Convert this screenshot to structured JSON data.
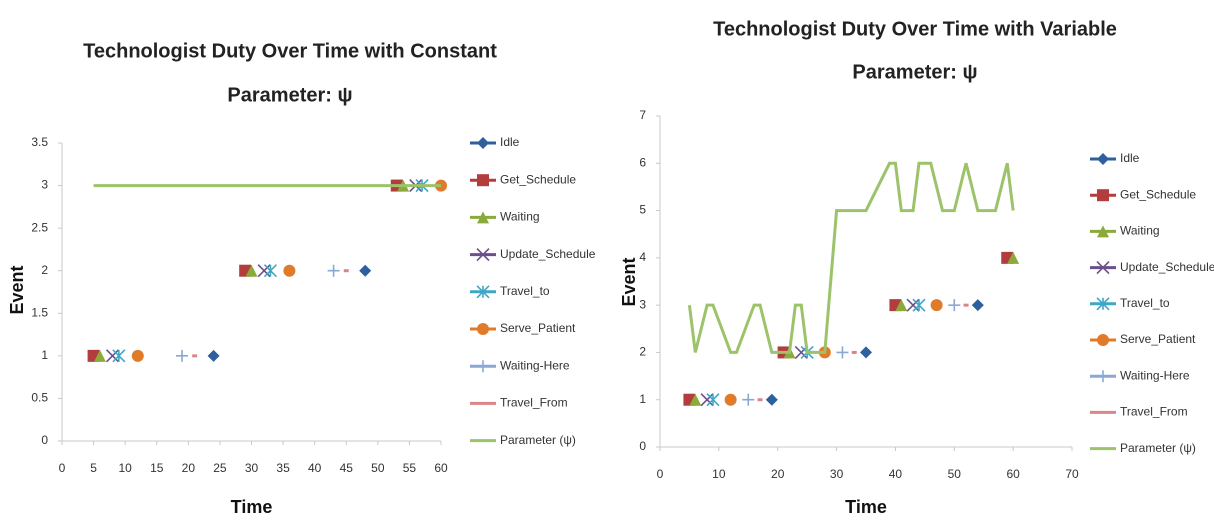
{
  "chart_data": [
    {
      "type": "scatter",
      "title": [
        "Technologist Duty Over Time with Constant",
        "Parameter: ψ"
      ],
      "x_label": "Time",
      "y_label": "Event",
      "xlim": [
        0,
        60
      ],
      "xticks": [
        0,
        5,
        10,
        15,
        20,
        25,
        30,
        35,
        40,
        45,
        50,
        55,
        60
      ],
      "ylim": [
        0,
        3.5
      ],
      "yticks": [
        0,
        0.5,
        1,
        1.5,
        2,
        2.5,
        3,
        3.5
      ],
      "series": [
        {
          "name": "Idle",
          "color": "#2e5f9e",
          "marker": "diamond",
          "x": [
            24,
            48
          ],
          "values": [
            1,
            2
          ]
        },
        {
          "name": "Get_Schedule",
          "color": "#b33c3c",
          "marker": "square",
          "x": [
            5,
            29,
            53
          ],
          "values": [
            1,
            2,
            3
          ]
        },
        {
          "name": "Waiting",
          "color": "#8aaa3c",
          "marker": "triangle",
          "x": [
            6,
            30,
            54
          ],
          "values": [
            1,
            2,
            3
          ]
        },
        {
          "name": "Update_Schedule",
          "color": "#6b4f8c",
          "marker": "x",
          "x": [
            8,
            32,
            56
          ],
          "values": [
            1,
            2,
            3
          ]
        },
        {
          "name": "Travel_to",
          "color": "#3fa7c5",
          "marker": "star",
          "x": [
            9,
            33,
            57
          ],
          "values": [
            1,
            2,
            3
          ]
        },
        {
          "name": "Serve_Patient",
          "color": "#e07b2a",
          "marker": "circle",
          "x": [
            12,
            36,
            60
          ],
          "values": [
            1,
            2,
            3
          ]
        },
        {
          "name": "Waiting-Here",
          "color": "#8aa8d6",
          "marker": "plus",
          "x": [
            19,
            43
          ],
          "values": [
            1,
            2
          ]
        },
        {
          "name": "Travel_From",
          "color": "#d9868a",
          "marker": "dash",
          "x": [
            21,
            45
          ],
          "values": [
            1,
            2
          ]
        },
        {
          "name": "Parameter (ψ)",
          "color": "#9cc36a",
          "marker": "line",
          "x": [
            5,
            60
          ],
          "values": [
            3,
            3
          ]
        }
      ]
    },
    {
      "type": "scatter",
      "title": [
        "Technologist Duty Over Time with Variable",
        "Parameter: ψ"
      ],
      "x_label": "Time",
      "y_label": "Event",
      "xlim": [
        0,
        70
      ],
      "xticks": [
        0,
        10,
        20,
        30,
        40,
        50,
        60,
        70
      ],
      "ylim": [
        0,
        7
      ],
      "yticks": [
        0,
        1,
        2,
        3,
        4,
        5,
        6,
        7
      ],
      "series": [
        {
          "name": "Idle",
          "color": "#2e5f9e",
          "marker": "diamond",
          "x": [
            19,
            35,
            54
          ],
          "values": [
            1,
            2,
            3
          ]
        },
        {
          "name": "Get_Schedule",
          "color": "#b33c3c",
          "marker": "square",
          "x": [
            5,
            21,
            40,
            59
          ],
          "values": [
            1,
            2,
            3,
            4
          ]
        },
        {
          "name": "Waiting",
          "color": "#8aaa3c",
          "marker": "triangle",
          "x": [
            6,
            22,
            41,
            60
          ],
          "values": [
            1,
            2,
            3,
            4
          ]
        },
        {
          "name": "Update_Schedule",
          "color": "#6b4f8c",
          "marker": "x",
          "x": [
            8,
            24,
            43
          ],
          "values": [
            1,
            2,
            3
          ]
        },
        {
          "name": "Travel_to",
          "color": "#3fa7c5",
          "marker": "star",
          "x": [
            9,
            25,
            44
          ],
          "values": [
            1,
            2,
            3
          ]
        },
        {
          "name": "Serve_Patient",
          "color": "#e07b2a",
          "marker": "circle",
          "x": [
            12,
            28,
            47
          ],
          "values": [
            1,
            2,
            3
          ]
        },
        {
          "name": "Waiting-Here",
          "color": "#8aa8d6",
          "marker": "plus",
          "x": [
            15,
            31,
            50
          ],
          "values": [
            1,
            2,
            3
          ]
        },
        {
          "name": "Travel_From",
          "color": "#d9868a",
          "marker": "dash",
          "x": [
            17,
            33,
            52
          ],
          "values": [
            1,
            2,
            3
          ]
        },
        {
          "name": "Parameter (ψ)",
          "color": "#9cc36a",
          "marker": "line",
          "x": [
            5,
            6,
            8,
            9,
            12,
            13,
            16,
            17,
            19,
            21,
            22,
            23,
            24,
            25,
            27,
            28,
            30,
            31,
            33,
            35,
            39,
            40,
            41,
            43,
            44,
            46,
            48,
            50,
            52,
            54,
            57,
            59,
            60
          ],
          "values": [
            3,
            2,
            3,
            3,
            2,
            2,
            3,
            3,
            2,
            2,
            2,
            3,
            3,
            2,
            2,
            2,
            5,
            5,
            5,
            5,
            6,
            6,
            5,
            5,
            6,
            6,
            5,
            5,
            6,
            5,
            5,
            6,
            5
          ]
        }
      ]
    }
  ]
}
